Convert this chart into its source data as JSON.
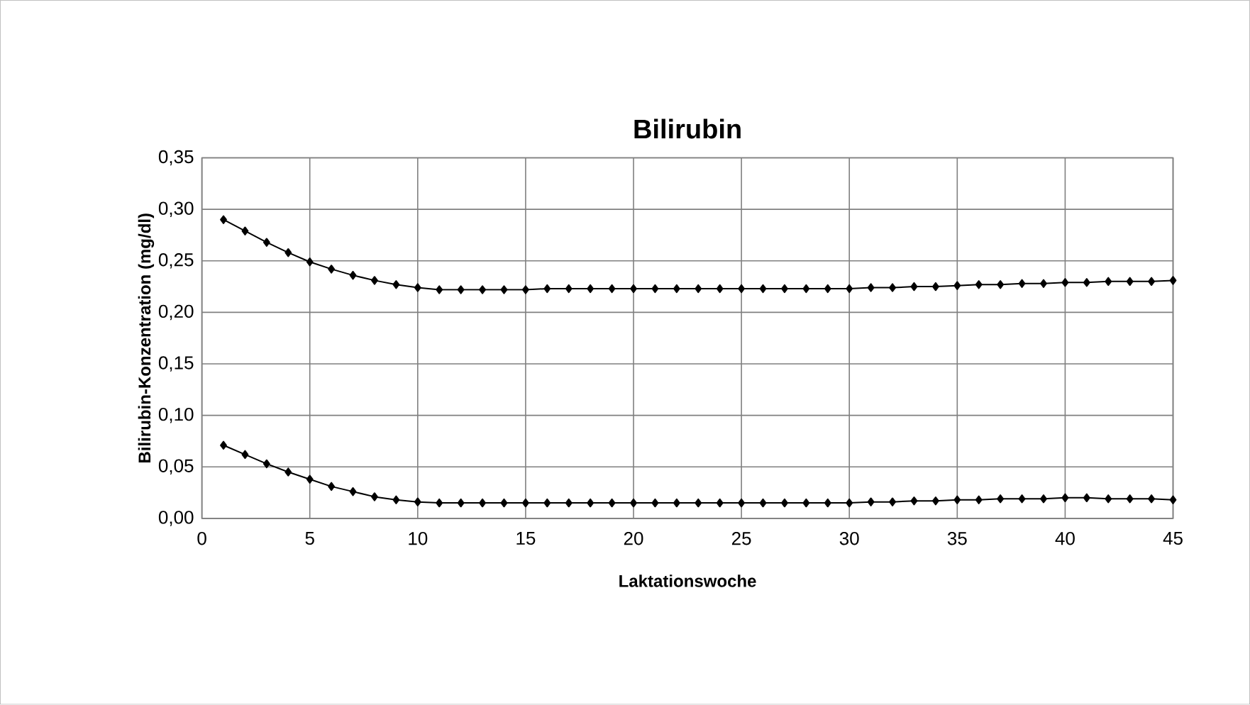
{
  "chart_data": {
    "type": "line",
    "title": "Bilirubin",
    "xlabel": "Laktationswoche",
    "ylabel": "Bilirubin-Konzentration (mg/dl)",
    "x": [
      1,
      2,
      3,
      4,
      5,
      6,
      7,
      8,
      9,
      10,
      11,
      12,
      13,
      14,
      15,
      16,
      17,
      18,
      19,
      20,
      21,
      22,
      23,
      24,
      25,
      26,
      27,
      28,
      29,
      30,
      31,
      32,
      33,
      34,
      35,
      36,
      37,
      38,
      39,
      40,
      41,
      42,
      43,
      44,
      45
    ],
    "series": [
      {
        "color": "#000000",
        "values": [
          0.29,
          0.279,
          0.268,
          0.258,
          0.249,
          0.242,
          0.236,
          0.231,
          0.227,
          0.224,
          0.222,
          0.222,
          0.222,
          0.222,
          0.222,
          0.223,
          0.223,
          0.223,
          0.223,
          0.223,
          0.223,
          0.223,
          0.223,
          0.223,
          0.223,
          0.223,
          0.223,
          0.223,
          0.223,
          0.223,
          0.224,
          0.224,
          0.225,
          0.225,
          0.226,
          0.227,
          0.227,
          0.228,
          0.228,
          0.229,
          0.229,
          0.23,
          0.23,
          0.23,
          0.231
        ]
      },
      {
        "color": "#000000",
        "values": [
          0.071,
          0.062,
          0.053,
          0.045,
          0.038,
          0.031,
          0.026,
          0.021,
          0.018,
          0.016,
          0.015,
          0.015,
          0.015,
          0.015,
          0.015,
          0.015,
          0.015,
          0.015,
          0.015,
          0.015,
          0.015,
          0.015,
          0.015,
          0.015,
          0.015,
          0.015,
          0.015,
          0.015,
          0.015,
          0.015,
          0.016,
          0.016,
          0.017,
          0.017,
          0.018,
          0.018,
          0.019,
          0.019,
          0.019,
          0.02,
          0.02,
          0.019,
          0.019,
          0.019,
          0.018
        ]
      }
    ],
    "xlim": [
      0,
      45
    ],
    "xticks": [
      0,
      5,
      10,
      15,
      20,
      25,
      30,
      35,
      40,
      45
    ],
    "ylim": [
      0,
      0.35
    ],
    "yticks": [
      {
        "value": 0,
        "label": "0,00"
      },
      {
        "value": 0.05,
        "label": "0,05"
      },
      {
        "value": 0.1,
        "label": "0,10"
      },
      {
        "value": 0.15,
        "label": "0,15"
      },
      {
        "value": 0.2,
        "label": "0,20"
      },
      {
        "value": 0.25,
        "label": "0,25"
      },
      {
        "value": 0.3,
        "label": "0,30"
      },
      {
        "value": 0.35,
        "label": "0,35"
      }
    ],
    "grid": true,
    "marker": "diamond",
    "line_style": "solid"
  }
}
